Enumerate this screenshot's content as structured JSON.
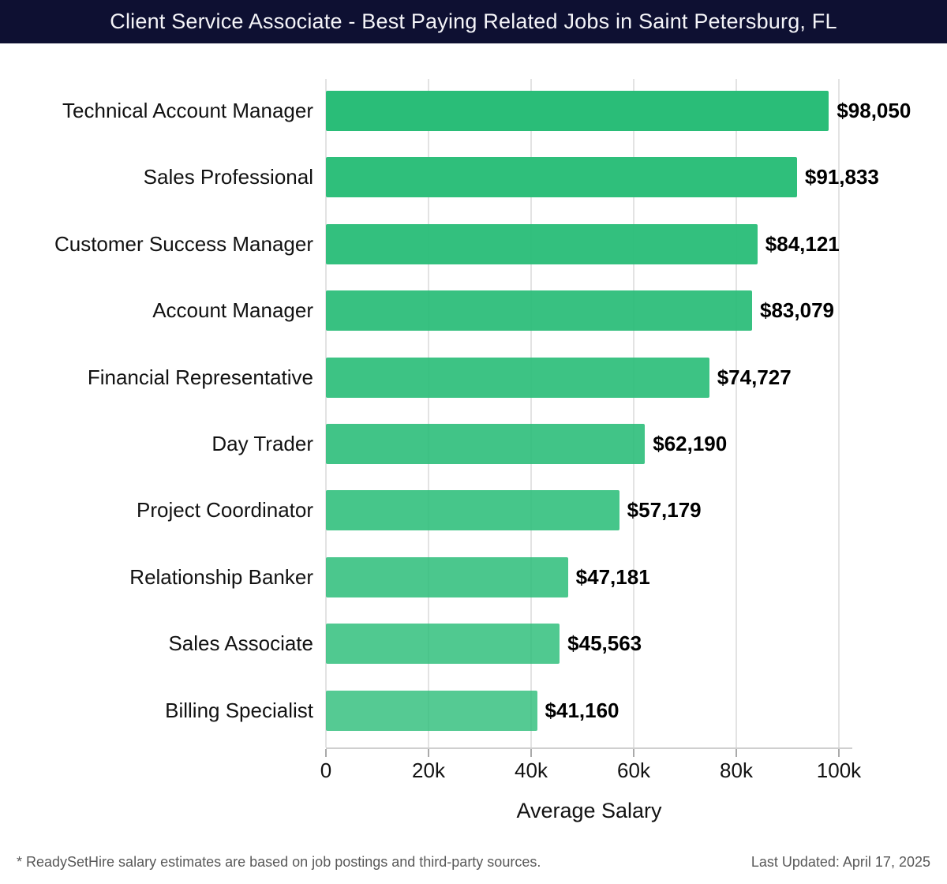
{
  "header": {
    "title": "Client Service Associate - Best Paying Related Jobs in Saint Petersburg, FL",
    "background": "#0e1032",
    "text_color": "#f4f4f8"
  },
  "chart_data": {
    "type": "bar",
    "orientation": "horizontal",
    "title": "Client Service Associate - Best Paying Related Jobs in Saint Petersburg, FL",
    "categories": [
      "Technical Account Manager",
      "Sales Professional",
      "Customer Success Manager",
      "Account Manager",
      "Financial Representative",
      "Day Trader",
      "Project Coordinator",
      "Relationship Banker",
      "Sales Associate",
      "Billing Specialist"
    ],
    "values": [
      98050,
      91833,
      84121,
      83079,
      74727,
      62190,
      57179,
      47181,
      45563,
      41160
    ],
    "value_labels": [
      "$98,050",
      "$91,833",
      "$84,121",
      "$83,079",
      "$74,727",
      "$62,190",
      "$57,179",
      "$47,181",
      "$45,563",
      "$41,160"
    ],
    "xlabel": "Average Salary",
    "ylabel": "",
    "xlim": [
      0,
      100000
    ],
    "grid": true,
    "legend": false,
    "x_ticks": [
      {
        "value": 0,
        "label": "0"
      },
      {
        "value": 20000,
        "label": "20k"
      },
      {
        "value": 40000,
        "label": "40k"
      },
      {
        "value": 60000,
        "label": "60k"
      },
      {
        "value": 80000,
        "label": "80k"
      },
      {
        "value": 100000,
        "label": "100k"
      }
    ],
    "bar_color": "#2abd78",
    "bar_color_end": "#55ca97",
    "gridline_color": "#e3e3e3",
    "value_label_color": "#000000"
  },
  "footer": {
    "note": "* ReadySetHire salary estimates are based on job postings and third-party sources.",
    "last_updated": "Last Updated: April 17, 2025"
  }
}
